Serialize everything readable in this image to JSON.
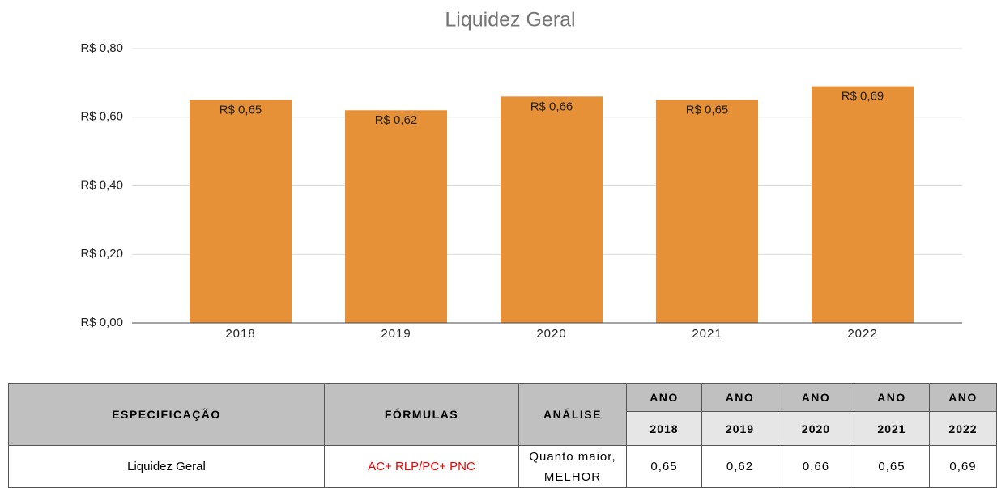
{
  "chart_data": {
    "type": "bar",
    "title": "Liquidez Geral",
    "categories": [
      "2018",
      "2019",
      "2020",
      "2021",
      "2022"
    ],
    "values": [
      0.65,
      0.62,
      0.66,
      0.65,
      0.69
    ],
    "value_labels": [
      "R$ 0,65",
      "R$ 0,62",
      "R$ 0,66",
      "R$ 0,65",
      "R$ 0,69"
    ],
    "color": "#e69138",
    "ylim": [
      0,
      0.8
    ],
    "yticks": [
      {
        "value": 0,
        "label": "R$ 0,00"
      },
      {
        "value": 0.2,
        "label": "R$ 0,20"
      },
      {
        "value": 0.4,
        "label": "R$ 0,40"
      },
      {
        "value": 0.6,
        "label": "R$ 0,60"
      },
      {
        "value": 0.8,
        "label": "R$ 0,80"
      }
    ],
    "grid": true
  },
  "table": {
    "headers": [
      "ESPECIFICAÇÃO",
      "FÓRMULAS",
      "ANÁLISE"
    ],
    "year_headers": [
      "ANO",
      "ANO",
      "ANO",
      "ANO",
      "ANO"
    ],
    "years": [
      "2018",
      "2019",
      "2020",
      "2021",
      "2022"
    ],
    "rows": [
      [
        "Liquidez Geral",
        "AC+ RLP/PC+ PNC",
        "Quanto maior, MELHOR",
        "0,65",
        "0,62",
        "0,66",
        "0,65",
        "0,69"
      ]
    ]
  }
}
